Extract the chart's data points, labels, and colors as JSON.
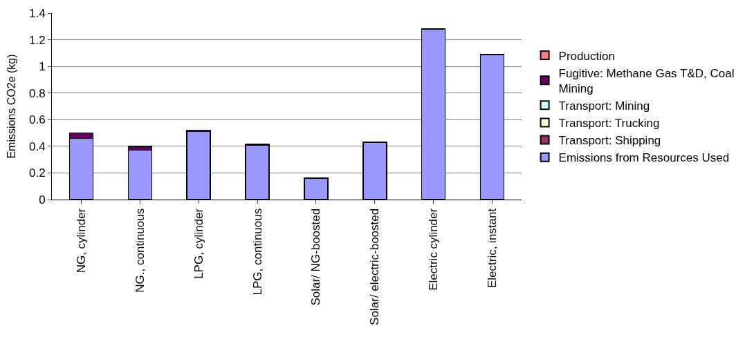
{
  "chart_data": {
    "type": "bar",
    "stacked": true,
    "ylabel": "Emissions CO2e (kg)",
    "categories": [
      "NG, cylinder",
      "NG., continuous",
      "LPG, cylinder",
      "LPG, continuous",
      "Solar/ NG-boosted",
      "Solar/ electric-boosted",
      "Electric cylinder",
      "Electric, instant"
    ],
    "series": [
      {
        "name": "Emissions from Resources Used",
        "color": "#9999ff",
        "values": [
          0.46,
          0.37,
          0.51,
          0.41,
          0.16,
          0.43,
          1.28,
          1.09
        ]
      },
      {
        "name": "Transport: Shipping",
        "color": "#993366",
        "values": [
          0,
          0,
          0,
          0,
          0,
          0,
          0,
          0
        ]
      },
      {
        "name": "Transport: Trucking",
        "color": "#ffffcc",
        "values": [
          0,
          0,
          0,
          0.005,
          0,
          0,
          0,
          0
        ]
      },
      {
        "name": "Transport: Mining",
        "color": "#ccffff",
        "values": [
          0,
          0,
          0,
          0,
          0,
          0,
          0,
          0
        ]
      },
      {
        "name": "Fugitive: Methane Gas T&D, Coal Mining",
        "color": "#660066",
        "values": [
          0.04,
          0.03,
          0.01,
          0,
          0,
          0,
          0,
          0
        ]
      },
      {
        "name": "Production",
        "color": "#ff8080",
        "values": [
          0,
          0,
          0,
          0,
          0,
          0,
          0,
          0
        ]
      }
    ],
    "ylim": [
      0,
      1.4
    ],
    "yticks": [
      0,
      0.2,
      0.4,
      0.6,
      0.8,
      1,
      1.2,
      1.4
    ],
    "grid": "y",
    "legend": "right"
  }
}
